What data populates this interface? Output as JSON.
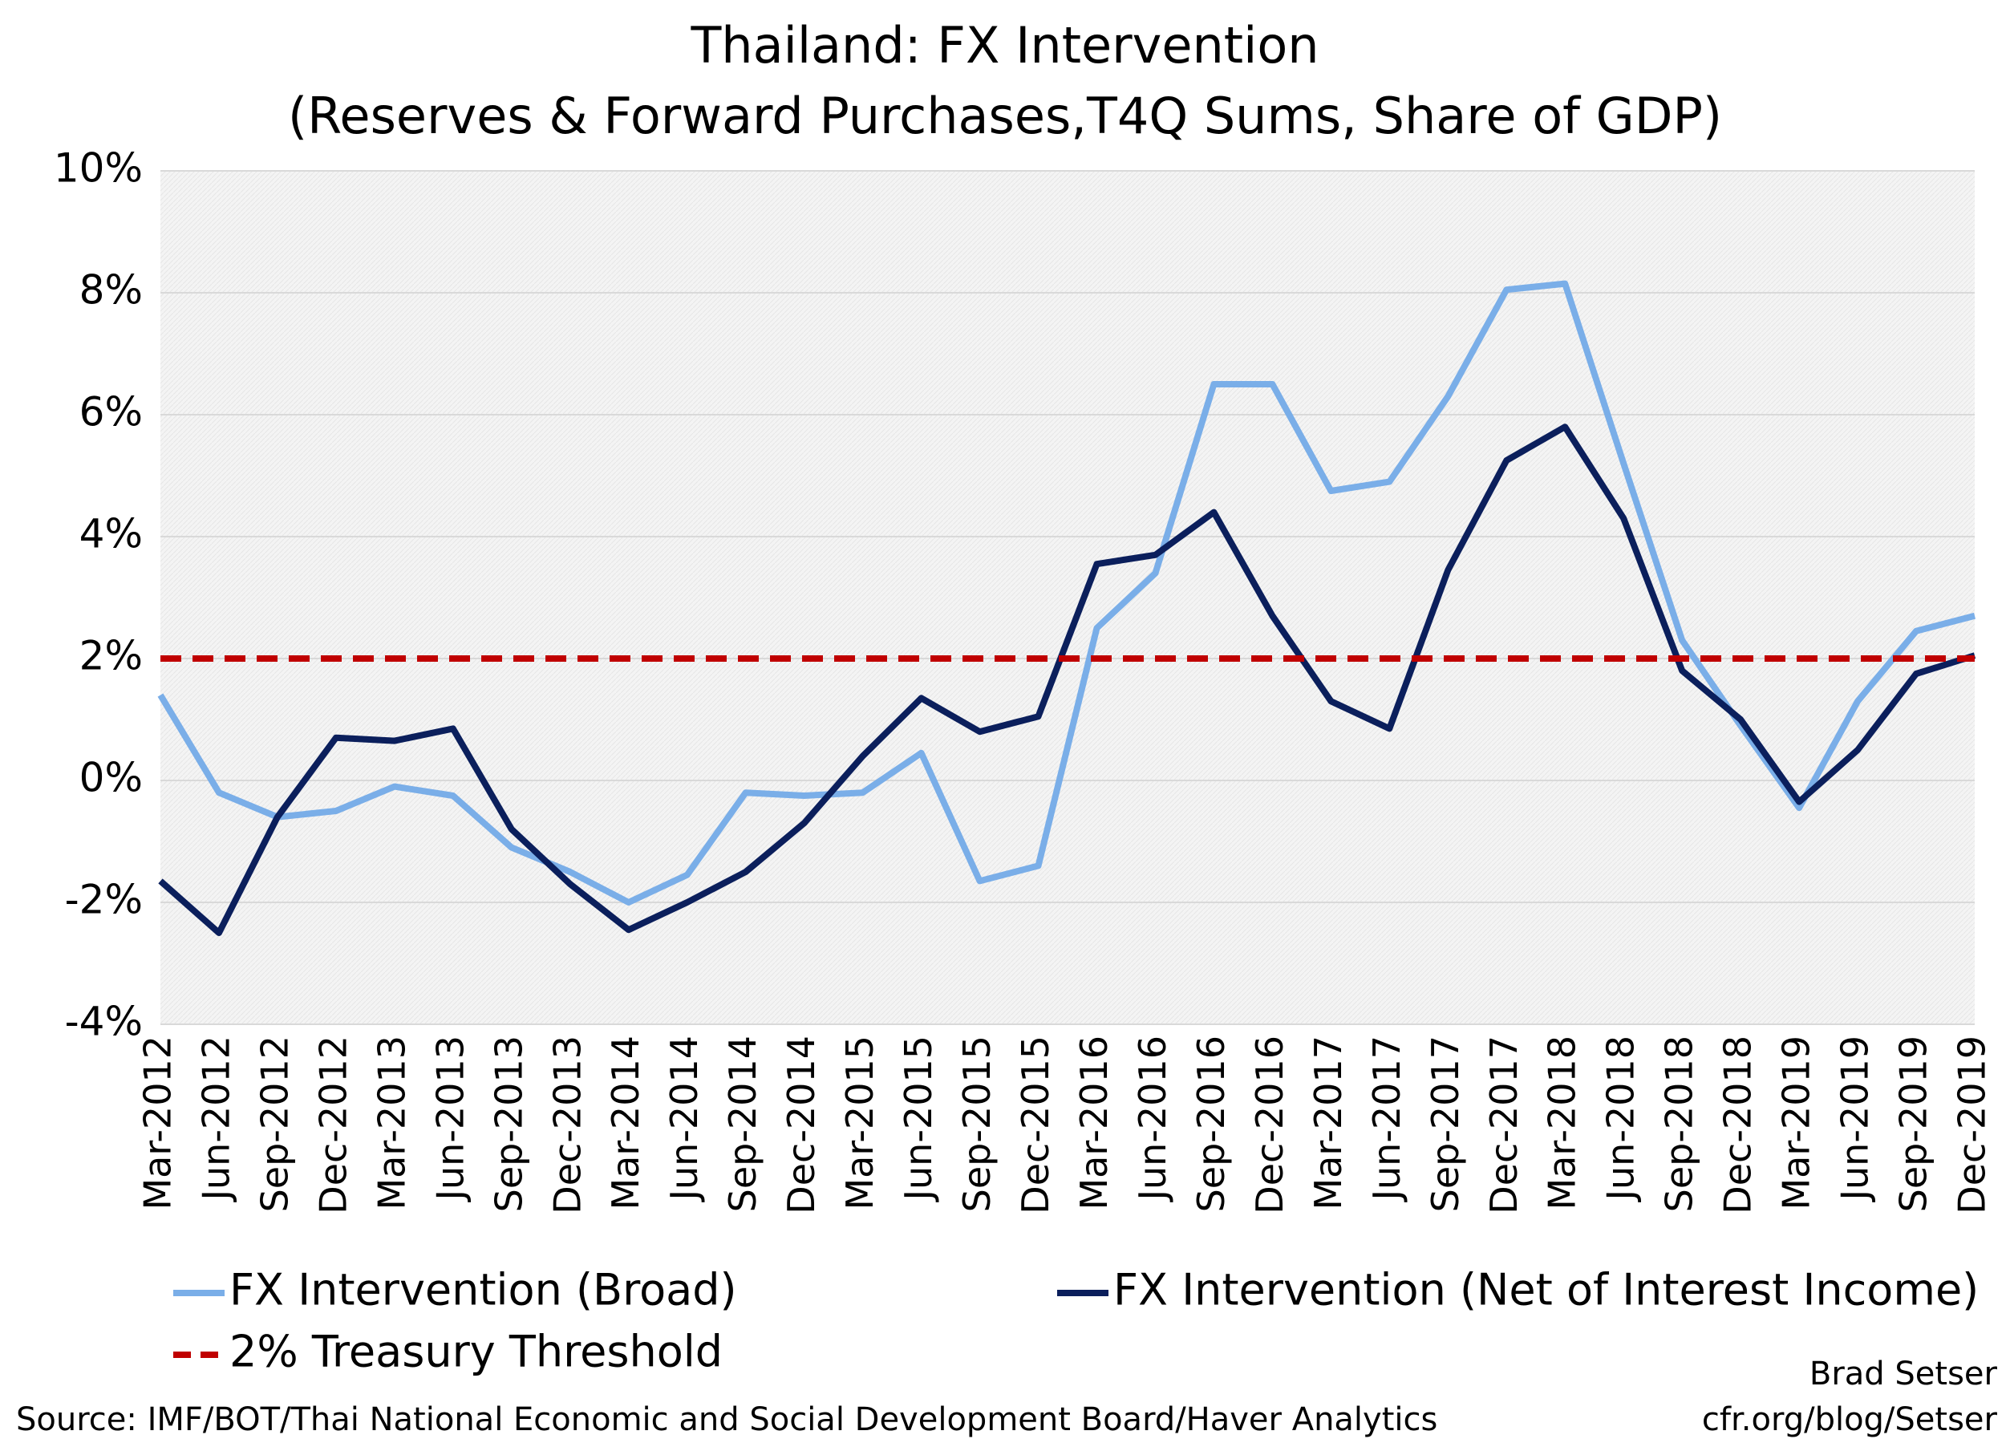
{
  "chart_data": {
    "type": "line",
    "title": "Thailand: FX Intervention",
    "subtitle": "(Reserves & Forward Purchases,T4Q Sums, Share of GDP)",
    "categories": [
      "Mar-2012",
      "Jun-2012",
      "Sep-2012",
      "Dec-2012",
      "Mar-2013",
      "Jun-2013",
      "Sep-2013",
      "Dec-2013",
      "Mar-2014",
      "Jun-2014",
      "Sep-2014",
      "Dec-2014",
      "Mar-2015",
      "Jun-2015",
      "Sep-2015",
      "Dec-2015",
      "Mar-2016",
      "Jun-2016",
      "Sep-2016",
      "Dec-2016",
      "Mar-2017",
      "Jun-2017",
      "Sep-2017",
      "Dec-2017",
      "Mar-2018",
      "Jun-2018",
      "Sep-2018",
      "Dec-2018",
      "Mar-2019",
      "Jun-2019",
      "Sep-2019",
      "Dec-2019"
    ],
    "series": [
      {
        "name": "FX Intervention (Broad)",
        "color": "#7aaee8",
        "values": [
          1.4,
          -0.2,
          -0.6,
          -0.5,
          -0.1,
          -0.25,
          -1.1,
          -1.5,
          -2.0,
          -1.55,
          -0.2,
          -0.25,
          -0.2,
          0.45,
          -1.65,
          -1.4,
          2.5,
          3.4,
          6.5,
          6.5,
          4.75,
          4.9,
          6.3,
          8.05,
          8.15,
          5.2,
          2.3,
          0.9,
          -0.45,
          1.3,
          2.45,
          2.7
        ]
      },
      {
        "name": "FX Intervention (Net of Interest Income)",
        "color": "#0b1f5c",
        "values": [
          -1.65,
          -2.5,
          -0.6,
          0.7,
          0.65,
          0.85,
          -0.8,
          -1.7,
          -2.45,
          -2.0,
          -1.5,
          -0.7,
          0.4,
          1.35,
          0.8,
          1.05,
          3.55,
          3.7,
          4.4,
          2.7,
          1.3,
          0.85,
          3.45,
          5.25,
          5.8,
          4.3,
          1.8,
          1.0,
          -0.35,
          0.5,
          1.75,
          2.05
        ]
      },
      {
        "name": "2% Treasury Threshold",
        "color": "#c00000",
        "dashed": true,
        "values": [
          2,
          2,
          2,
          2,
          2,
          2,
          2,
          2,
          2,
          2,
          2,
          2,
          2,
          2,
          2,
          2,
          2,
          2,
          2,
          2,
          2,
          2,
          2,
          2,
          2,
          2,
          2,
          2,
          2,
          2,
          2,
          2
        ]
      }
    ],
    "ylim": [
      -4,
      10
    ],
    "yticks": [
      {
        "value": -4,
        "label": "-4%"
      },
      {
        "value": -2,
        "label": "-2%"
      },
      {
        "value": 0,
        "label": "0%"
      },
      {
        "value": 2,
        "label": "2%"
      },
      {
        "value": 4,
        "label": "4%"
      },
      {
        "value": 6,
        "label": "6%"
      },
      {
        "value": 8,
        "label": "8%"
      },
      {
        "value": 10,
        "label": "10%"
      }
    ],
    "grid": true,
    "source": "Source: IMF/BOT/Thai National Economic and Social Development Board/Haver Analytics",
    "author": "Brad Setser",
    "url": "cfr.org/blog/Setser"
  }
}
